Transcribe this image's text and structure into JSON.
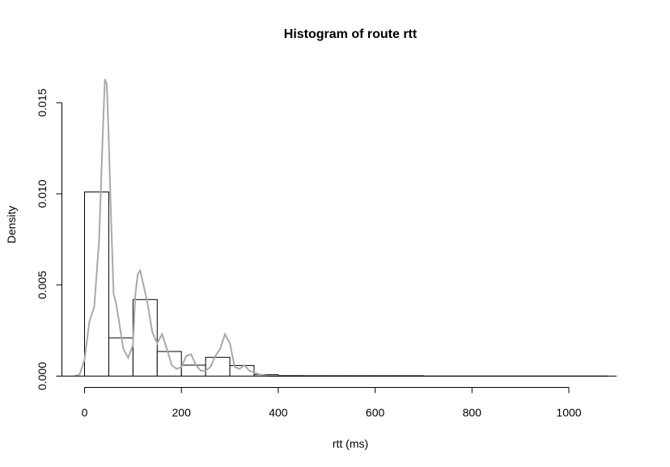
{
  "chart_data": {
    "type": "bar",
    "title": "Histogram of route  rtt",
    "xlabel": "rtt  (ms)",
    "ylabel": "Density",
    "xlim": [
      0,
      1100
    ],
    "ylim": [
      0,
      0.016
    ],
    "x_ticks": [
      "0",
      "200",
      "400",
      "600",
      "800",
      "1000"
    ],
    "y_ticks": [
      "0.000",
      "0.005",
      "0.010",
      "0.015"
    ],
    "bins": [
      {
        "x0": 0,
        "x1": 50,
        "density": 0.0101
      },
      {
        "x0": 50,
        "x1": 100,
        "density": 0.0021
      },
      {
        "x0": 100,
        "x1": 150,
        "density": 0.0042
      },
      {
        "x0": 150,
        "x1": 200,
        "density": 0.00135
      },
      {
        "x0": 200,
        "x1": 250,
        "density": 0.0006
      },
      {
        "x0": 250,
        "x1": 300,
        "density": 0.00103
      },
      {
        "x0": 300,
        "x1": 350,
        "density": 0.00058
      },
      {
        "x0": 350,
        "x1": 400,
        "density": 8e-05
      },
      {
        "x0": 400,
        "x1": 450,
        "density": 4e-05
      },
      {
        "x0": 450,
        "x1": 500,
        "density": 2e-05
      },
      {
        "x0": 500,
        "x1": 550,
        "density": 3e-05
      },
      {
        "x0": 550,
        "x1": 600,
        "density": 2e-05
      },
      {
        "x0": 600,
        "x1": 650,
        "density": 3e-05
      },
      {
        "x0": 650,
        "x1": 700,
        "density": 1e-05
      }
    ],
    "density_curve": {
      "color": "#a9a9a9",
      "x": [
        -20,
        -10,
        0,
        10,
        20,
        30,
        38,
        42,
        46,
        50,
        55,
        60,
        65,
        70,
        80,
        90,
        100,
        105,
        110,
        115,
        120,
        130,
        140,
        150,
        160,
        170,
        180,
        190,
        200,
        210,
        220,
        230,
        240,
        250,
        260,
        270,
        280,
        290,
        300,
        310,
        320,
        330,
        340,
        350,
        360,
        380,
        400,
        450,
        500,
        600,
        700,
        800,
        900,
        1000,
        1080
      ],
      "y": [
        0.0,
        0.0001,
        0.0009,
        0.003,
        0.0038,
        0.0075,
        0.0135,
        0.0163,
        0.016,
        0.013,
        0.0085,
        0.0045,
        0.004,
        0.0032,
        0.0015,
        0.001,
        0.0017,
        0.0045,
        0.0056,
        0.0058,
        0.0052,
        0.004,
        0.0024,
        0.0018,
        0.0023,
        0.0015,
        0.0006,
        0.0004,
        0.0005,
        0.0011,
        0.0012,
        0.0006,
        0.0003,
        0.0003,
        0.0005,
        0.0011,
        0.0015,
        0.0023,
        0.0018,
        0.0005,
        0.0004,
        0.0006,
        0.0003,
        0.0002,
        0.0001,
        0.0,
        0.0,
        0.0,
        0.0,
        0.0,
        0.0,
        0.0,
        0.0,
        0.0,
        0.0
      ]
    }
  }
}
